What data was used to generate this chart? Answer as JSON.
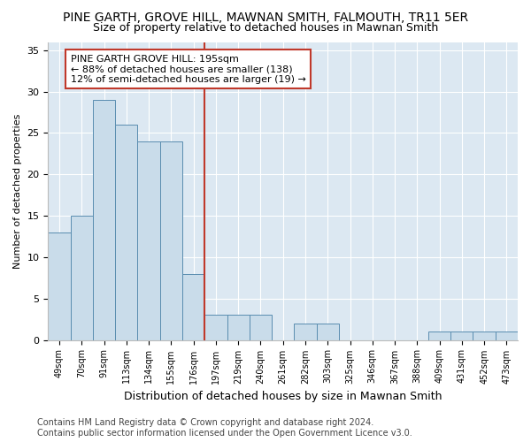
{
  "title": "PINE GARTH, GROVE HILL, MAWNAN SMITH, FALMOUTH, TR11 5ER",
  "subtitle": "Size of property relative to detached houses in Mawnan Smith",
  "xlabel": "Distribution of detached houses by size in Mawnan Smith",
  "ylabel": "Number of detached properties",
  "categories": [
    "49sqm",
    "70sqm",
    "91sqm",
    "113sqm",
    "134sqm",
    "155sqm",
    "176sqm",
    "197sqm",
    "219sqm",
    "240sqm",
    "261sqm",
    "282sqm",
    "303sqm",
    "325sqm",
    "346sqm",
    "367sqm",
    "388sqm",
    "409sqm",
    "431sqm",
    "452sqm",
    "473sqm"
  ],
  "values": [
    13,
    15,
    29,
    26,
    24,
    24,
    8,
    3,
    3,
    3,
    0,
    2,
    2,
    0,
    0,
    0,
    0,
    1,
    1,
    1,
    1
  ],
  "bar_color": "#c9dcea",
  "bar_edge_color": "#5a8db0",
  "marker_index": 6.5,
  "marker_color": "#c0392b",
  "annotation_text": "PINE GARTH GROVE HILL: 195sqm\n← 88% of detached houses are smaller (138)\n12% of semi-detached houses are larger (19) →",
  "annotation_box_color": "#ffffff",
  "annotation_border_color": "#c0392b",
  "ylim": [
    0,
    36
  ],
  "yticks": [
    0,
    5,
    10,
    15,
    20,
    25,
    30,
    35
  ],
  "footer_line1": "Contains HM Land Registry data © Crown copyright and database right 2024.",
  "footer_line2": "Contains public sector information licensed under the Open Government Licence v3.0.",
  "bg_color": "#dce8f2",
  "fig_bg_color": "#ffffff",
  "title_fontsize": 10,
  "subtitle_fontsize": 9,
  "annotation_fontsize": 8,
  "footer_fontsize": 7,
  "ylabel_fontsize": 8,
  "xlabel_fontsize": 9
}
